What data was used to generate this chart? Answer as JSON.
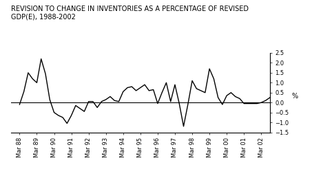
{
  "title_line1": "REVISION TO CHANGE IN INVENTORIES AS A PERCENTAGE OF REVISED",
  "title_line2": "GDP(E), 1988-2002",
  "ylabel": "%",
  "ylim": [
    -1.5,
    2.5
  ],
  "yticks": [
    -1.5,
    -1.0,
    -0.5,
    0.0,
    0.5,
    1.0,
    1.5,
    2.0,
    2.5
  ],
  "x_labels": [
    "Mar 88",
    "Mar 89",
    "Mar 90",
    "Mar 91",
    "Mar 92",
    "Mar 93",
    "Mar 94",
    "Mar 95",
    "Mar 96",
    "Mar 97",
    "Mar 98",
    "Mar 99",
    "Mar 00",
    "Mar 01",
    "Mar 02"
  ],
  "x_values": [
    0,
    1,
    2,
    3,
    4,
    5,
    6,
    7,
    8,
    9,
    10,
    11,
    12,
    13,
    14
  ],
  "data_x": [
    0.0,
    0.25,
    0.5,
    0.75,
    1.0,
    1.25,
    1.5,
    1.75,
    2.0,
    2.25,
    2.5,
    2.75,
    3.0,
    3.25,
    3.5,
    3.75,
    4.0,
    4.25,
    4.5,
    4.75,
    5.0,
    5.25,
    5.5,
    5.75,
    6.0,
    6.25,
    6.5,
    6.75,
    7.0,
    7.25,
    7.5,
    7.75,
    8.0,
    8.25,
    8.5,
    8.75,
    9.0,
    9.25,
    9.5,
    9.75,
    10.0,
    10.25,
    10.5,
    10.75,
    11.0,
    11.25,
    11.5,
    11.75,
    12.0,
    12.25,
    12.5,
    12.75,
    13.0,
    13.25,
    13.5,
    13.75,
    14.0,
    14.25,
    14.5
  ],
  "data_y": [
    -0.1,
    0.55,
    1.5,
    1.2,
    1.0,
    2.2,
    1.45,
    0.15,
    -0.5,
    -0.65,
    -0.75,
    -1.05,
    -0.65,
    -0.15,
    -0.3,
    -0.45,
    0.05,
    0.05,
    -0.25,
    0.05,
    0.15,
    0.3,
    0.1,
    0.05,
    0.55,
    0.75,
    0.8,
    0.6,
    0.75,
    0.9,
    0.6,
    0.65,
    -0.05,
    0.5,
    1.0,
    0.05,
    0.9,
    -0.05,
    -1.2,
    -0.1,
    1.1,
    0.7,
    0.6,
    0.5,
    1.7,
    1.2,
    0.25,
    -0.1,
    0.35,
    0.5,
    0.3,
    0.2,
    -0.05,
    -0.05,
    -0.05,
    -0.05,
    0.0,
    0.1,
    0.25
  ],
  "line_color": "#000000",
  "line_width": 1.0,
  "bg_color": "#ffffff",
  "title_fontsize": 7.0,
  "tick_fontsize": 6.0,
  "ylabel_fontsize": 7.0
}
